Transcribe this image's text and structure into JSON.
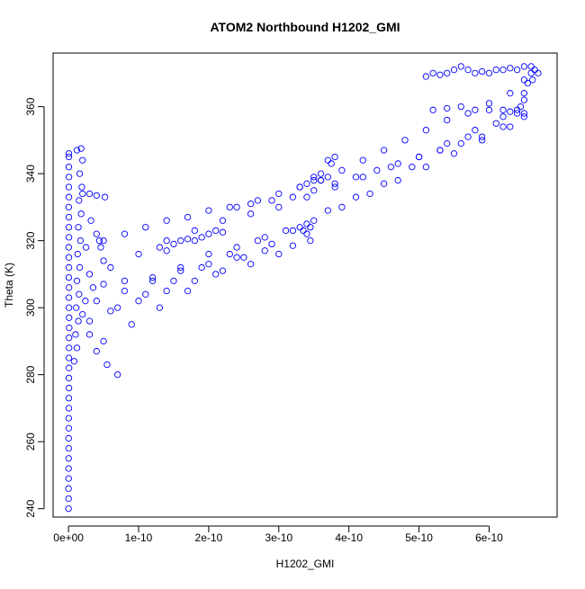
{
  "chart_data": {
    "type": "scatter",
    "title": "ATOM2 Northbound H1202_GMI",
    "xlabel": "H1202_GMI",
    "ylabel": "Theta (K)",
    "xlim": [
      -2.2e-11,
      6.97e-10
    ],
    "ylim": [
      237.5,
      376
    ],
    "x_ticks": [
      {
        "value": 0,
        "label": "0e+00"
      },
      {
        "value": 1e-10,
        "label": "1e-10"
      },
      {
        "value": 2e-10,
        "label": "2e-10"
      },
      {
        "value": 3e-10,
        "label": "3e-10"
      },
      {
        "value": 4e-10,
        "label": "4e-10"
      },
      {
        "value": 5e-10,
        "label": "5e-10"
      },
      {
        "value": 6e-10,
        "label": "6e-10"
      }
    ],
    "y_ticks": [
      {
        "value": 240,
        "label": "240"
      },
      {
        "value": 260,
        "label": "260"
      },
      {
        "value": 280,
        "label": "280"
      },
      {
        "value": 300,
        "label": "300"
      },
      {
        "value": 320,
        "label": "320"
      },
      {
        "value": 340,
        "label": "340"
      },
      {
        "value": 360,
        "label": "360"
      }
    ],
    "marker": "open-circle",
    "color": "#0000ff",
    "grid": false,
    "legend": "none",
    "series": [
      {
        "points": [
          [
            0.0,
            240
          ],
          [
            1e-13,
            243
          ],
          [
            0.0,
            246
          ],
          [
            2e-13,
            249
          ],
          [
            1e-13,
            252
          ],
          [
            2e-13,
            255
          ],
          [
            3e-13,
            258
          ],
          [
            2e-13,
            261
          ],
          [
            4e-13,
            264
          ],
          [
            3e-13,
            267
          ],
          [
            5e-13,
            270
          ],
          [
            4e-13,
            273
          ],
          [
            6e-13,
            276
          ],
          [
            5e-13,
            279
          ],
          [
            7e-13,
            282
          ],
          [
            6e-13,
            285
          ],
          [
            8e-13,
            288
          ],
          [
            7e-13,
            291
          ],
          [
            9e-13,
            294
          ],
          [
            8e-13,
            297
          ],
          [
            6e-13,
            300
          ],
          [
            5e-13,
            303
          ],
          [
            7e-13,
            306
          ],
          [
            4e-13,
            309
          ],
          [
            6e-13,
            312
          ],
          [
            5e-13,
            315
          ],
          [
            3e-13,
            318
          ],
          [
            6e-13,
            321
          ],
          [
            4e-13,
            324
          ],
          [
            5e-13,
            327
          ],
          [
            3e-13,
            330
          ],
          [
            5e-13,
            333
          ],
          [
            4e-13,
            336
          ],
          [
            6e-13,
            339
          ],
          [
            4e-13,
            342
          ],
          [
            5e-13,
            345
          ],
          [
            4e-13,
            346
          ],
          [
            1.2e-11,
            347
          ],
          [
            1.8e-11,
            347.5
          ],
          [
            2e-11,
            344
          ],
          [
            1.6e-11,
            340
          ],
          [
            1.9e-11,
            336
          ],
          [
            1.5e-11,
            332
          ],
          [
            1.8e-11,
            328
          ],
          [
            1.4e-11,
            324
          ],
          [
            1.7e-11,
            320
          ],
          [
            1.3e-11,
            316
          ],
          [
            1.6e-11,
            312
          ],
          [
            1.2e-11,
            308
          ],
          [
            1.5e-11,
            304
          ],
          [
            1.1e-11,
            300
          ],
          [
            1.4e-11,
            296
          ],
          [
            1e-11,
            292
          ],
          [
            1.2e-11,
            288
          ],
          [
            8e-12,
            284
          ],
          [
            2e-11,
            334
          ],
          [
            3e-11,
            334
          ],
          [
            4e-11,
            333.5
          ],
          [
            5.2e-11,
            333
          ],
          [
            3.2e-11,
            326
          ],
          [
            4e-11,
            322
          ],
          [
            4.6e-11,
            318
          ],
          [
            5e-11,
            314
          ],
          [
            4.4e-11,
            320
          ],
          [
            2.5e-11,
            318
          ],
          [
            3e-11,
            310
          ],
          [
            3.5e-11,
            306
          ],
          [
            2.4e-11,
            302
          ],
          [
            2e-11,
            298
          ],
          [
            3e-11,
            292
          ],
          [
            4e-11,
            287
          ],
          [
            5.5e-11,
            283
          ],
          [
            7e-11,
            280
          ],
          [
            5e-11,
            307
          ],
          [
            8e-11,
            308
          ],
          [
            1.2e-10,
            309
          ],
          [
            1.6e-10,
            311
          ],
          [
            2e-10,
            313
          ],
          [
            2.4e-10,
            315
          ],
          [
            2.8e-10,
            317
          ],
          [
            3.2e-10,
            318.5
          ],
          [
            3.45e-10,
            320
          ],
          [
            3.4e-10,
            322
          ],
          [
            3.35e-10,
            323
          ],
          [
            3.45e-10,
            324
          ],
          [
            4e-11,
            302
          ],
          [
            8e-11,
            305
          ],
          [
            1.2e-10,
            308
          ],
          [
            1.6e-10,
            312
          ],
          [
            2e-10,
            316
          ],
          [
            2.4e-10,
            318
          ],
          [
            2.8e-10,
            321
          ],
          [
            3.2e-10,
            323
          ],
          [
            3.4e-10,
            325
          ],
          [
            3e-11,
            296
          ],
          [
            6e-11,
            299
          ],
          [
            1e-10,
            302
          ],
          [
            1.4e-10,
            305
          ],
          [
            1.8e-10,
            308
          ],
          [
            2.2e-10,
            311
          ],
          [
            2.6e-10,
            313
          ],
          [
            3e-10,
            316
          ],
          [
            1.3e-10,
            318
          ],
          [
            1.5e-10,
            319
          ],
          [
            1.7e-10,
            320.5
          ],
          [
            1.9e-10,
            321
          ],
          [
            2e-10,
            322
          ],
          [
            2.1e-10,
            323
          ],
          [
            2.2e-10,
            322.5
          ],
          [
            1.4e-10,
            317
          ],
          [
            1.6e-10,
            320
          ],
          [
            1.8e-10,
            320
          ],
          [
            5e-11,
            320
          ],
          [
            8e-11,
            322
          ],
          [
            1.1e-10,
            324
          ],
          [
            1.4e-10,
            326
          ],
          [
            1.7e-10,
            327
          ],
          [
            2e-10,
            329
          ],
          [
            2.3e-10,
            330
          ],
          [
            2.6e-10,
            331
          ],
          [
            2.9e-10,
            332
          ],
          [
            3.2e-10,
            333
          ],
          [
            3.5e-10,
            335
          ],
          [
            3.8e-10,
            337
          ],
          [
            4.1e-10,
            339
          ],
          [
            4.4e-10,
            341
          ],
          [
            4.7e-10,
            343
          ],
          [
            5e-10,
            345
          ],
          [
            5.3e-10,
            347
          ],
          [
            5.6e-10,
            349
          ],
          [
            5.9e-10,
            351
          ],
          [
            6.2e-10,
            354
          ],
          [
            6.5e-10,
            357
          ],
          [
            6.7e-10,
            370
          ],
          [
            6e-11,
            312
          ],
          [
            1e-10,
            316
          ],
          [
            1.4e-10,
            320
          ],
          [
            1.8e-10,
            323
          ],
          [
            2.2e-10,
            326
          ],
          [
            2.6e-10,
            328
          ],
          [
            3e-10,
            330
          ],
          [
            3.4e-10,
            333
          ],
          [
            3.8e-10,
            336
          ],
          [
            4.2e-10,
            339
          ],
          [
            4.6e-10,
            342
          ],
          [
            5e-10,
            345
          ],
          [
            5.4e-10,
            349
          ],
          [
            5.8e-10,
            353
          ],
          [
            6.2e-10,
            357
          ],
          [
            6.5e-10,
            362
          ],
          [
            7e-11,
            300
          ],
          [
            1.1e-10,
            304
          ],
          [
            1.5e-10,
            308
          ],
          [
            1.9e-10,
            312
          ],
          [
            2.3e-10,
            316
          ],
          [
            2.7e-10,
            320
          ],
          [
            3.1e-10,
            323
          ],
          [
            3.5e-10,
            326
          ],
          [
            3.9e-10,
            330
          ],
          [
            4.3e-10,
            334
          ],
          [
            4.7e-10,
            338
          ],
          [
            5.1e-10,
            342
          ],
          [
            5.5e-10,
            346
          ],
          [
            5.9e-10,
            350
          ],
          [
            6.3e-10,
            354
          ],
          [
            6.5e-10,
            358
          ],
          [
            5e-11,
            290
          ],
          [
            9e-11,
            295
          ],
          [
            1.3e-10,
            300
          ],
          [
            1.7e-10,
            305
          ],
          [
            2.1e-10,
            310
          ],
          [
            2.5e-10,
            315
          ],
          [
            2.9e-10,
            319
          ],
          [
            3.3e-10,
            324
          ],
          [
            3.7e-10,
            329
          ],
          [
            4.1e-10,
            333
          ],
          [
            4.5e-10,
            337
          ],
          [
            4.9e-10,
            342
          ],
          [
            5.3e-10,
            347
          ],
          [
            5.7e-10,
            351
          ],
          [
            6.1e-10,
            355
          ],
          [
            6.4e-10,
            359
          ],
          [
            2.4e-10,
            330
          ],
          [
            2.7e-10,
            332
          ],
          [
            3e-10,
            334
          ],
          [
            3.3e-10,
            336
          ],
          [
            3.6e-10,
            338
          ],
          [
            3.9e-10,
            341
          ],
          [
            4.2e-10,
            344
          ],
          [
            4.5e-10,
            347
          ],
          [
            4.8e-10,
            350
          ],
          [
            5.1e-10,
            353
          ],
          [
            5.4e-10,
            356
          ],
          [
            5.7e-10,
            358
          ],
          [
            6e-10,
            361
          ],
          [
            6.3e-10,
            364
          ],
          [
            6.5e-10,
            368
          ],
          [
            3.3e-10,
            336
          ],
          [
            3.4e-10,
            337
          ],
          [
            3.5e-10,
            338
          ],
          [
            3.6e-10,
            338
          ],
          [
            3.7e-10,
            339
          ],
          [
            3.75e-10,
            343
          ],
          [
            3.8e-10,
            345
          ],
          [
            3.7e-10,
            344
          ],
          [
            3.6e-10,
            340
          ],
          [
            3.5e-10,
            339
          ],
          [
            5.1e-10,
            369
          ],
          [
            5.2e-10,
            370
          ],
          [
            5.3e-10,
            369.5
          ],
          [
            5.4e-10,
            370
          ],
          [
            5.5e-10,
            371
          ],
          [
            5.6e-10,
            372
          ],
          [
            5.7e-10,
            371
          ],
          [
            5.8e-10,
            370
          ],
          [
            5.9e-10,
            370.5
          ],
          [
            6e-10,
            370
          ],
          [
            6.1e-10,
            371
          ],
          [
            6.2e-10,
            371
          ],
          [
            6.3e-10,
            371.5
          ],
          [
            6.4e-10,
            371
          ],
          [
            6.5e-10,
            372
          ],
          [
            6.6e-10,
            372
          ],
          [
            6.65e-10,
            371
          ],
          [
            6.62e-10,
            368
          ],
          [
            5.2e-10,
            359
          ],
          [
            5.4e-10,
            359.5
          ],
          [
            5.6e-10,
            360
          ],
          [
            5.8e-10,
            359
          ],
          [
            6e-10,
            359
          ],
          [
            6.2e-10,
            359
          ],
          [
            6.3e-10,
            358.5
          ],
          [
            6.4e-10,
            358
          ],
          [
            6.45e-10,
            360
          ],
          [
            6.5e-10,
            364
          ],
          [
            6.55e-10,
            367
          ],
          [
            6.6e-10,
            370
          ]
        ]
      }
    ]
  }
}
